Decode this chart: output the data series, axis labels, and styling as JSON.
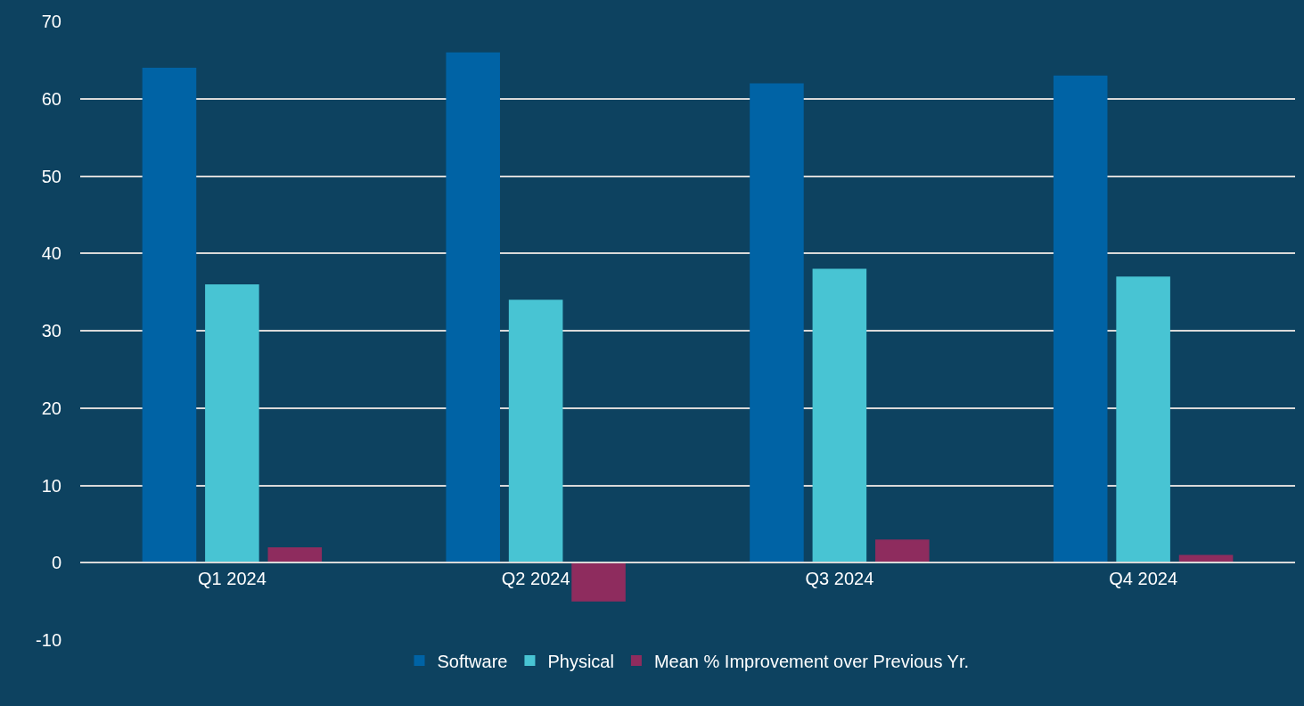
{
  "chart_data": {
    "type": "bar",
    "categories": [
      "Q1 2024",
      "Q2 2024",
      "Q3 2024",
      "Q4 2024"
    ],
    "series": [
      {
        "name": "Software",
        "color": "#0063a5",
        "values": [
          64,
          66,
          62,
          63
        ]
      },
      {
        "name": "Physical",
        "color": "#48c4d3",
        "values": [
          36,
          34,
          38,
          37
        ]
      },
      {
        "name": "Mean % Improvement over Previous Yr.",
        "color": "#8e2c5e",
        "values": [
          2,
          -5,
          3,
          1
        ]
      }
    ],
    "ylim": [
      -10,
      70
    ],
    "yticks": [
      -10,
      0,
      10,
      20,
      30,
      40,
      50,
      60,
      70
    ],
    "grid": "y",
    "legend": "bottom"
  }
}
